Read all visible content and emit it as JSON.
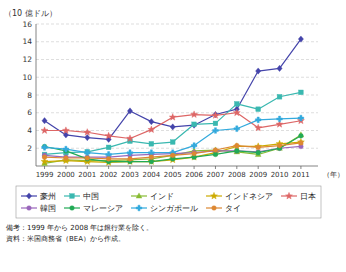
{
  "chart_data": {
    "type": "line",
    "ylabel": "（10 億ドル）",
    "xlabel": "（年）",
    "annotations": [
      "備考：1999 年から 2008 年は銀行業を除く。",
      "資料：米国商務省（BEA）から作成。"
    ],
    "x": [
      1999,
      2000,
      2001,
      2002,
      2003,
      2004,
      2005,
      2006,
      2007,
      2008,
      2009,
      2010,
      2011
    ],
    "xlim": [
      1998.6,
      2011.8
    ],
    "xticks": [
      1999,
      2000,
      2001,
      2002,
      2003,
      2004,
      2005,
      2006,
      2007,
      2008,
      2009,
      2010,
      2011
    ],
    "ylim": [
      0,
      16
    ],
    "yticks": [
      2,
      4,
      6,
      8,
      10,
      12,
      14,
      16
    ],
    "grid": true,
    "legend": "bottom",
    "series": [
      {
        "name": "豪州",
        "color": "#4444aa",
        "marker": "diamond",
        "values": [
          5.1,
          3.5,
          3.2,
          3.0,
          6.2,
          5.0,
          4.4,
          4.6,
          5.8,
          6.4,
          10.7,
          11.0,
          14.3
        ]
      },
      {
        "name": "中国",
        "color": "#3ab8b0",
        "marker": "square",
        "values": [
          1.3,
          1.5,
          1.6,
          2.1,
          2.8,
          2.5,
          2.7,
          4.7,
          4.8,
          7.0,
          6.4,
          7.8,
          8.3
        ]
      },
      {
        "name": "インド",
        "color": "#88bb33",
        "marker": "triangle",
        "values": [
          0.3,
          0.7,
          0.6,
          0.6,
          0.7,
          0.8,
          1.2,
          1.7,
          1.8,
          1.6,
          1.3,
          2.0,
          3.5
        ]
      },
      {
        "name": "インドネシア",
        "color": "#ccaa00",
        "marker": "star",
        "values": [
          0.5,
          0.6,
          0.5,
          0.4,
          0.5,
          0.5,
          0.7,
          1.0,
          1.5,
          2.2,
          2.2,
          2.5,
          2.7
        ]
      },
      {
        "name": "日本",
        "color": "#dd6666",
        "marker": "star",
        "values": [
          4.0,
          4.0,
          3.8,
          3.4,
          3.1,
          4.1,
          5.5,
          5.8,
          5.7,
          6.0,
          4.3,
          4.7,
          5.1
        ]
      },
      {
        "name": "韓国",
        "color": "#9966bb",
        "marker": "circle",
        "values": [
          1.2,
          1.0,
          1.0,
          1.0,
          1.2,
          1.3,
          1.4,
          1.5,
          1.7,
          1.7,
          1.6,
          2.0,
          2.2
        ]
      },
      {
        "name": "マレーシア",
        "color": "#22aa55",
        "marker": "circle",
        "values": [
          2.2,
          1.7,
          0.8,
          0.5,
          0.5,
          0.5,
          0.8,
          1.0,
          1.3,
          1.7,
          1.5,
          2.0,
          3.4
        ]
      },
      {
        "name": "シンガポール",
        "color": "#33aadd",
        "marker": "plus",
        "values": [
          2.1,
          1.9,
          1.5,
          1.3,
          1.5,
          1.5,
          1.5,
          2.3,
          4.0,
          4.2,
          5.2,
          5.3,
          5.4
        ]
      },
      {
        "name": "タイ",
        "color": "#dd8833",
        "marker": "circle",
        "values": [
          1.0,
          0.9,
          0.9,
          0.8,
          0.8,
          1.0,
          1.2,
          1.4,
          1.8,
          2.3,
          2.1,
          2.3,
          2.6
        ]
      }
    ]
  }
}
